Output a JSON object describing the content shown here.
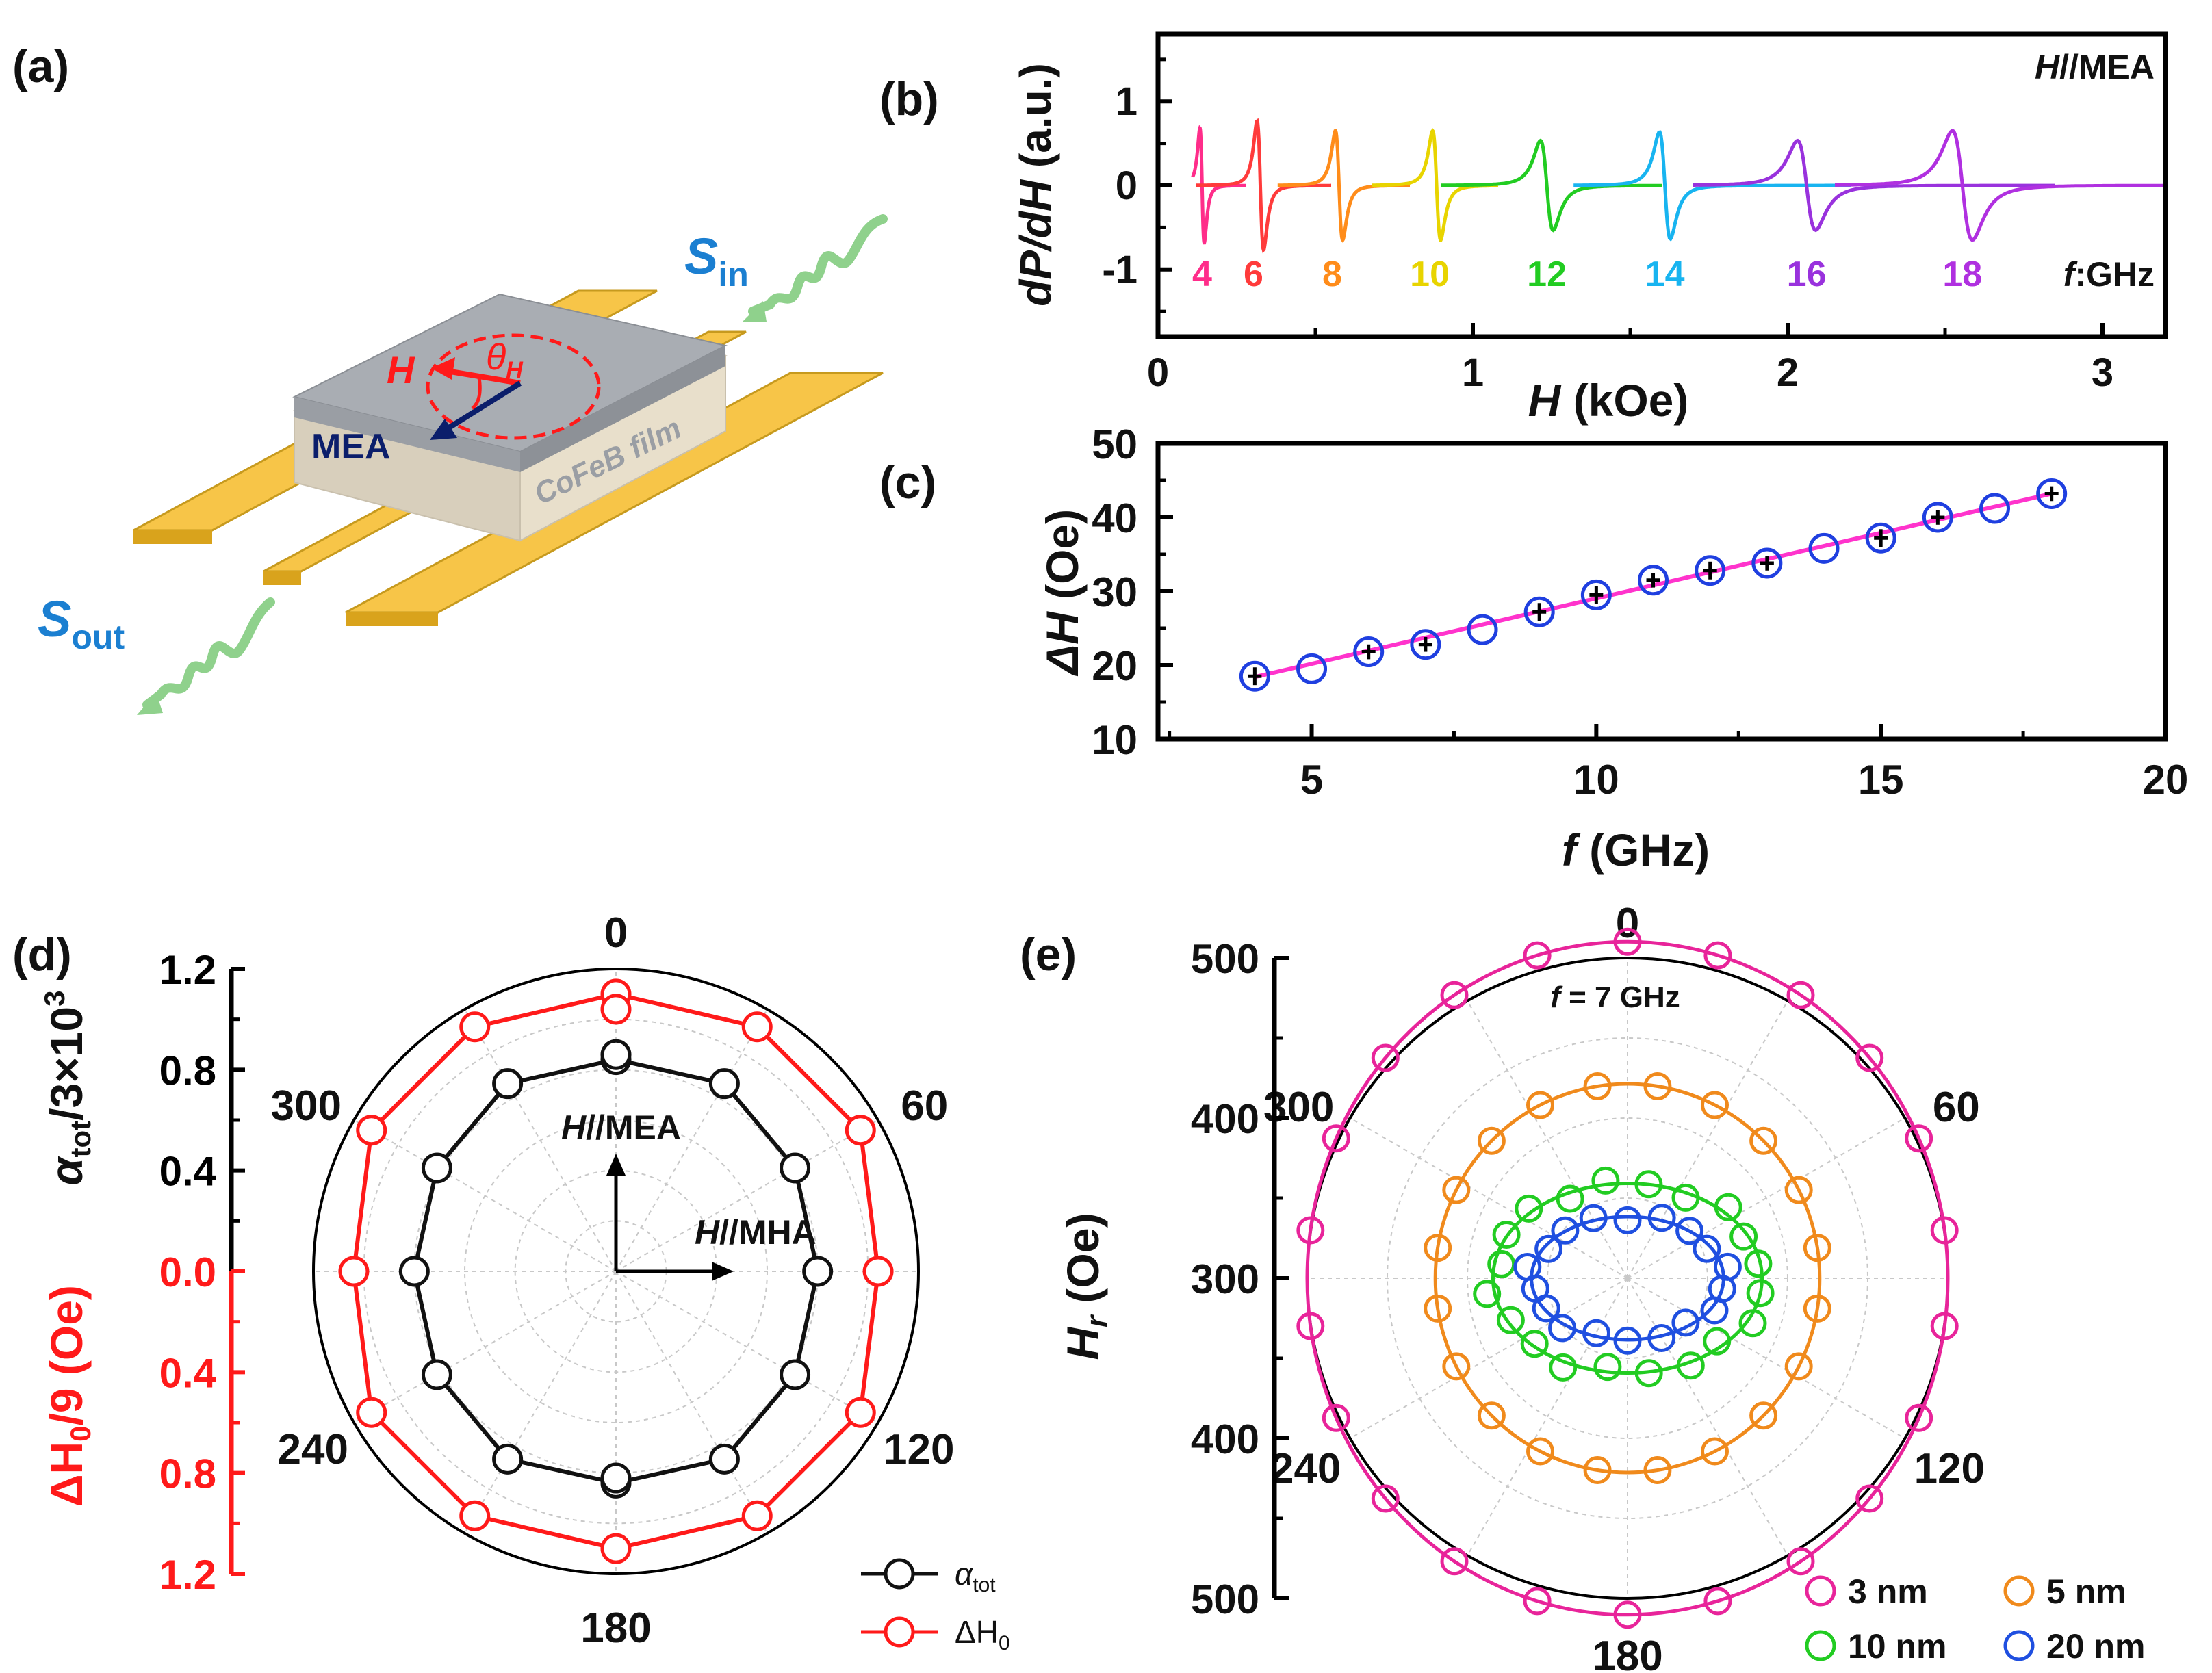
{
  "panel_labels": {
    "a": "(a)",
    "b": "(b)",
    "c": "(c)",
    "d": "(d)",
    "e": "(e)"
  },
  "schematic": {
    "h_label": "H",
    "theta_label": "θ",
    "theta_sub": "H",
    "mea_label": "MEA",
    "film_label": "CoFeB film",
    "s_in": "S",
    "s_in_sub": "in",
    "s_out": "S",
    "s_out_sub": "out",
    "colors": {
      "stripline": "#f7c548",
      "film": "#efe6d4",
      "cap": "#a9adb3",
      "wave": "#8fd18c",
      "text_blue": "#1b7fd1",
      "field": "#ff1a1a",
      "mea": "#0b1e6b"
    }
  },
  "chart_data": [
    {
      "id": "b",
      "type": "line",
      "title_left": "H",
      "title_right": "//MEA",
      "freq_unit_label": "f",
      "freq_unit_text": ":GHz",
      "xlabel_var": "H",
      "xlabel_unit": " (kOe)",
      "ylabel": "dP/dH",
      "ylabel_unit": " (a.u.)",
      "xlim": [
        0,
        3.2
      ],
      "ylim": [
        -1.8,
        1.8
      ],
      "xticks": [
        0,
        1,
        2,
        3
      ],
      "xtick_labels": [
        "0",
        "1",
        "2",
        "3"
      ],
      "yticks": [
        -1,
        0,
        1
      ],
      "ytick_labels": [
        "-1",
        "0",
        "1"
      ],
      "series": [
        {
          "name": "4",
          "color": "#ff2d8a",
          "center": 0.14,
          "width": 0.012,
          "amp": 1.05,
          "xmin": 0.11,
          "xmax": 0.28
        },
        {
          "name": "6",
          "color": "#ff3b3b",
          "center": 0.325,
          "width": 0.018,
          "amp": 1.18,
          "xmin": 0.12,
          "xmax": 0.55
        },
        {
          "name": "8",
          "color": "#ff8c1a",
          "center": 0.575,
          "width": 0.02,
          "amp": 1.0,
          "xmin": 0.38,
          "xmax": 0.8
        },
        {
          "name": "10",
          "color": "#e8d400",
          "center": 0.885,
          "width": 0.022,
          "amp": 1.0,
          "xmin": 0.68,
          "xmax": 1.08
        },
        {
          "name": "12",
          "color": "#22cc22",
          "center": 1.235,
          "width": 0.035,
          "amp": 0.82,
          "xmin": 0.9,
          "xmax": 1.6
        },
        {
          "name": "14",
          "color": "#18b4f0",
          "center": 1.61,
          "width": 0.03,
          "amp": 0.98,
          "xmin": 1.32,
          "xmax": 2.2
        },
        {
          "name": "16",
          "color": "#9932dd",
          "center": 2.06,
          "width": 0.05,
          "amp": 0.82,
          "xmin": 1.7,
          "xmax": 2.85
        },
        {
          "name": "18",
          "color": "#b030e0",
          "center": 2.555,
          "width": 0.055,
          "amp": 1.0,
          "xmin": 2.15,
          "xmax": 3.2
        }
      ]
    },
    {
      "id": "c",
      "type": "scatter",
      "xlabel_var": "f",
      "xlabel_unit": " (GHz)",
      "ylabel_var": "ΔH",
      "ylabel_unit": " (Oe)",
      "xlim": [
        2.3,
        20
      ],
      "ylim": [
        10,
        50
      ],
      "xticks": [
        5,
        10,
        15,
        20
      ],
      "xtick_labels": [
        "5",
        "10",
        "15",
        "20"
      ],
      "yticks": [
        10,
        20,
        30,
        40,
        50
      ],
      "ytick_labels": [
        "10",
        "20",
        "30",
        "40",
        "50"
      ],
      "x": [
        4,
        5,
        6,
        7,
        8,
        9,
        10,
        11,
        12,
        13,
        14,
        15,
        16,
        17,
        18
      ],
      "y": [
        18.5,
        19.5,
        21.8,
        22.8,
        24.8,
        27.2,
        29.5,
        31.5,
        32.8,
        33.8,
        35.8,
        37.2,
        40.0,
        41.2,
        43.2
      ],
      "errors": [
        1.2,
        0,
        1.0,
        1.0,
        0,
        1.2,
        1.2,
        1.0,
        1.2,
        1.0,
        0,
        1.2,
        1.0,
        0,
        1.0
      ],
      "fit": {
        "x": [
          4,
          18
        ],
        "y": [
          18.4,
          43.2
        ],
        "color": "#ff33cc"
      },
      "marker_color": "#1f3fe0"
    },
    {
      "id": "d",
      "type": "polar",
      "angle_ticks": [
        0,
        60,
        120,
        180,
        240,
        300
      ],
      "angle_labels": [
        "0",
        "60",
        "120",
        "180",
        "240",
        "300"
      ],
      "left_axis_label": "α",
      "left_axis_sub": "tot",
      "left_axis_rest": "/3×10",
      "left_axis_sup": "3",
      "right_axis_label": "ΔH",
      "right_axis_sub": "0",
      "right_axis_rest": "/9 (Oe)",
      "axis_ticks_top": [
        "1.2",
        "0.8",
        "0.4",
        "0.0"
      ],
      "axis_ticks_bottom": [
        "0.4",
        "0.8",
        "1.2"
      ],
      "rmax": 1.2,
      "arrow_up_label_var": "H",
      "arrow_up_label_rest": "//MEA",
      "arrow_right_label_var": "H",
      "arrow_right_label_rest": "//MHA",
      "angles": [
        0,
        30,
        60,
        90,
        120,
        150,
        180,
        210,
        240,
        270,
        300,
        330
      ],
      "series": [
        {
          "name": "α",
          "legend_sub": "tot",
          "color": "#111111",
          "values": [
            0.84,
            0.86,
            0.82,
            0.8,
            0.82,
            0.86,
            0.84,
            0.86,
            0.82,
            0.8,
            0.82,
            0.86
          ],
          "extra": [
            {
              "angle": 0,
              "value": 0.86
            },
            {
              "angle": 180,
              "value": 0.82
            }
          ]
        },
        {
          "name": "ΔH",
          "legend_sub": "0",
          "color": "#ff1a1a",
          "values": [
            1.1,
            1.12,
            1.12,
            1.04,
            1.12,
            1.12,
            1.1,
            1.12,
            1.12,
            1.04,
            1.12,
            1.12
          ],
          "extra": [
            {
              "angle": 0,
              "value": 1.04
            }
          ]
        }
      ]
    },
    {
      "id": "e",
      "type": "polar",
      "title": "f = 7 GHz",
      "title_var": "f",
      "title_rest": " = 7 GHz",
      "angle_ticks": [
        0,
        60,
        120,
        180,
        240,
        300
      ],
      "angle_labels": [
        "0",
        "60",
        "120",
        "180",
        "240",
        "300"
      ],
      "axis_label_var": "H",
      "axis_label_sub": "r",
      "axis_label_rest": " (Oe)",
      "axis_ticks": [
        "500",
        "400",
        "300",
        "400",
        "500"
      ],
      "series": [
        {
          "name": "3 nm",
          "color": "#e8249a",
          "a": 1.0,
          "b": 0.71,
          "points": 22
        },
        {
          "name": "5 nm",
          "color": "#f08a1c",
          "a": 0.6,
          "b": 0.41,
          "points": 20
        },
        {
          "name": "10 nm",
          "color": "#22cc22",
          "a": 0.42,
          "b": 0.2,
          "points": 20
        },
        {
          "name": "20 nm",
          "color": "#1f4fe0",
          "a": 0.3,
          "b": 0.13,
          "points": 18
        }
      ]
    }
  ]
}
